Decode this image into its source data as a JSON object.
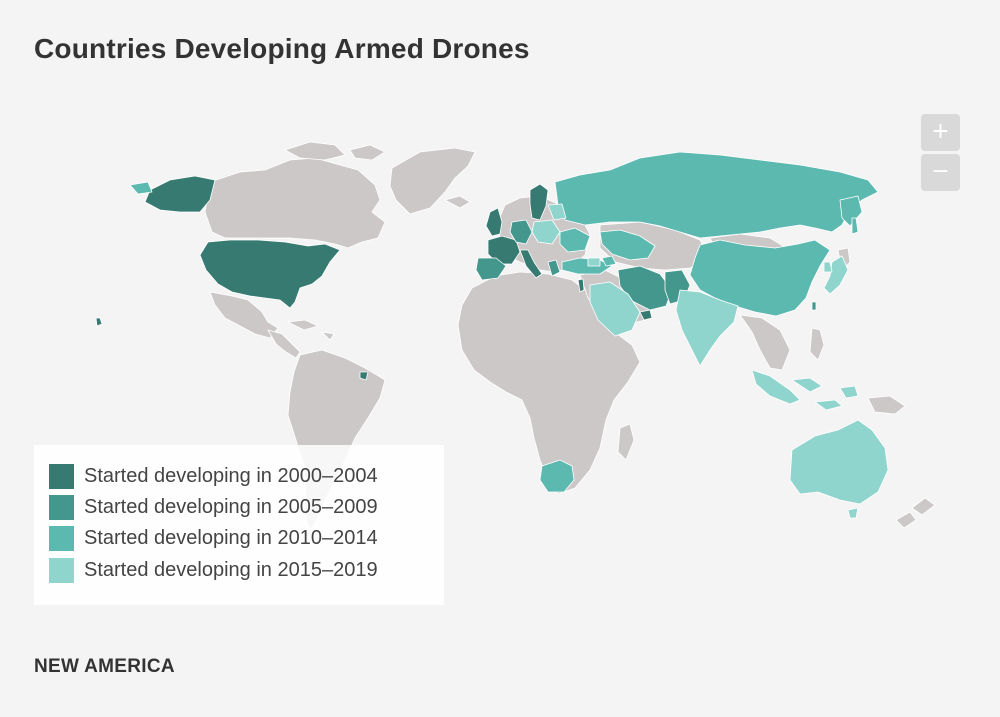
{
  "title": "Countries Developing Armed Drones",
  "zoom": {
    "in_label": "+",
    "out_label": "−"
  },
  "legend": {
    "items": [
      {
        "label": "Started developing in 2000–2004",
        "color": "#367a71"
      },
      {
        "label": "Started developing in 2005–2009",
        "color": "#43978c"
      },
      {
        "label": "Started developing in 2010–2014",
        "color": "#5cb9b0"
      },
      {
        "label": "Started developing in 2015–2019",
        "color": "#8fd4cd"
      }
    ]
  },
  "colors": {
    "land": "#cdc8c8",
    "background": "#f4f4f4",
    "border": "#ffffff"
  },
  "footer": "NEW AMERICA"
}
